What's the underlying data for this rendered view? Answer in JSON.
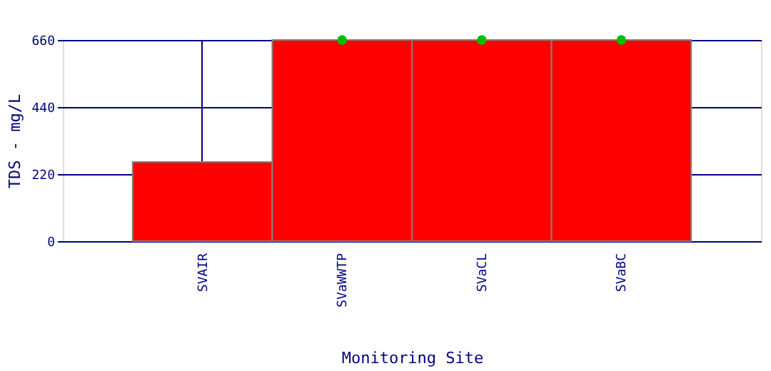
{
  "chart_data": {
    "type": "bar",
    "xlabel": "Monitoring Site",
    "ylabel": "TDS - mg/L",
    "categories": [
      "SVAIR",
      "SVaWWTP",
      "SVaCL",
      "SVaBC"
    ],
    "series": [
      {
        "color": "#ff0000",
        "values": [
          260,
          660,
          660,
          660
        ]
      },
      {
        "type": "scatter",
        "color": "#00c000",
        "marker": "circle",
        "values": [
          null,
          660,
          660,
          660
        ]
      }
    ],
    "ylim": [
      0,
      660
    ],
    "yticks": [
      0,
      220,
      440,
      660
    ],
    "grid": true
  }
}
